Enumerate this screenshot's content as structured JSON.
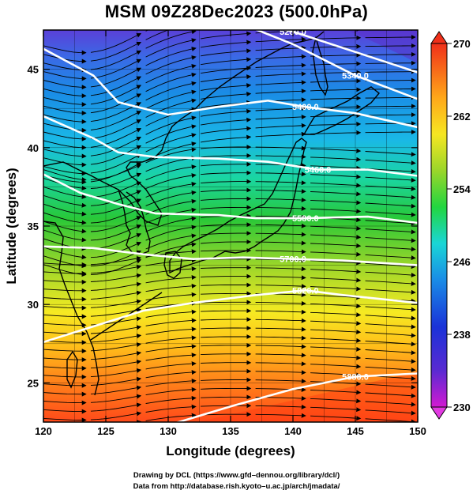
{
  "title": "MSM 09Z28Dec2023 (500.0hPa)",
  "axes": {
    "xlabel": "Longitude (degrees)",
    "ylabel": "Latitude  (degrees)",
    "xlim": [
      120,
      150
    ],
    "ylim": [
      22.5,
      47.5
    ],
    "xticks": [
      120,
      125,
      130,
      135,
      140,
      145,
      150
    ],
    "yticks": [
      25,
      30,
      35,
      40,
      45
    ]
  },
  "colorbar": {
    "min": 230,
    "max": 270,
    "ticks": [
      270,
      262,
      254,
      246,
      238,
      230
    ]
  },
  "contours": [
    {
      "label": "5280.0",
      "lat_at_lon": [
        [
          120,
          49.5
        ],
        [
          132,
          48.9
        ],
        [
          140,
          47.4
        ],
        [
          150,
          44.8
        ]
      ]
    },
    {
      "label": "5340.0",
      "lat_at_lon": [
        [
          134,
          48.5
        ],
        [
          140,
          46.6
        ],
        [
          145,
          44.6
        ],
        [
          150,
          43.1
        ]
      ]
    },
    {
      "label": "5400.0",
      "lat_at_lon": [
        [
          120,
          46.3
        ],
        [
          124,
          44.6
        ],
        [
          126,
          42.9
        ],
        [
          130,
          42.1
        ],
        [
          134,
          42.6
        ],
        [
          138,
          43.0
        ],
        [
          141,
          42.6
        ],
        [
          145,
          42.2
        ],
        [
          150,
          41.3
        ]
      ]
    },
    {
      "label": "5460.0",
      "lat_at_lon": [
        [
          120,
          42.0
        ],
        [
          124,
          40.6
        ],
        [
          126,
          39.7
        ],
        [
          129,
          39.4
        ],
        [
          134,
          39.3
        ],
        [
          138,
          39.1
        ],
        [
          142,
          38.6
        ],
        [
          146,
          38.6
        ],
        [
          150,
          38.2
        ]
      ]
    },
    {
      "label": "5580.0",
      "lat_at_lon": [
        [
          120,
          38.3
        ],
        [
          123,
          37.1
        ],
        [
          126,
          36.4
        ],
        [
          129,
          35.8
        ],
        [
          134,
          35.7
        ],
        [
          137,
          35.5
        ],
        [
          141,
          35.5
        ],
        [
          146,
          35.6
        ],
        [
          150,
          35.2
        ]
      ]
    },
    {
      "label": "5700.0",
      "lat_at_lon": [
        [
          120,
          33.7
        ],
        [
          124,
          33.6
        ],
        [
          128,
          33.2
        ],
        [
          132,
          32.9
        ],
        [
          136,
          33.0
        ],
        [
          140,
          32.9
        ],
        [
          144,
          32.8
        ],
        [
          150,
          32.5
        ]
      ]
    },
    {
      "label": "5820.0",
      "lat_at_lon": [
        [
          120,
          27.6
        ],
        [
          124,
          28.6
        ],
        [
          128,
          29.6
        ],
        [
          132,
          30.1
        ],
        [
          137,
          30.6
        ],
        [
          141,
          30.9
        ],
        [
          144,
          30.6
        ],
        [
          150,
          30.1
        ]
      ]
    },
    {
      "label": "5880.0",
      "lat_at_lon": [
        [
          130,
          22.3
        ],
        [
          135,
          23.5
        ],
        [
          140,
          24.6
        ],
        [
          145,
          25.4
        ],
        [
          150,
          25.6
        ]
      ]
    }
  ],
  "credits": {
    "line1": "Drawing by DCL (https://www.gfd–dennou.org/library/dcl/)",
    "line2": "Data from http://database.rish.kyoto–u.ac.jp/arch/jmadata/"
  }
}
